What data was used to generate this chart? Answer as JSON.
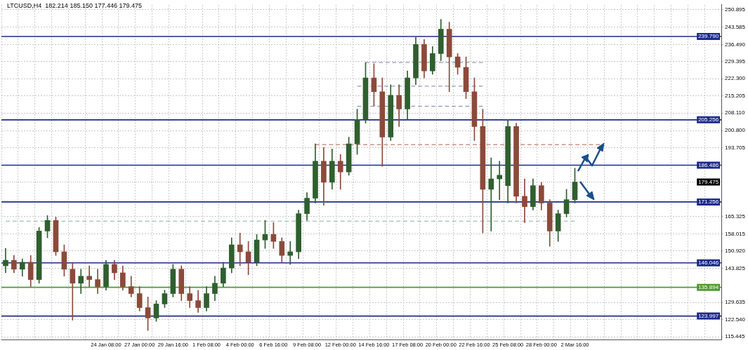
{
  "chart_data": {
    "type": "candlestick",
    "title": "LTCUSD,H4  182.214 185.150 177.446 179.475",
    "categories": [
      null,
      null,
      null,
      null,
      null,
      null,
      null,
      null,
      null,
      null,
      null,
      null,
      "24 Jan 08:00",
      null,
      null,
      null,
      "27 Jan 00:00",
      null,
      null,
      null,
      "29 Jan 16:00",
      null,
      null,
      null,
      "1 Feb 08:00",
      null,
      null,
      null,
      "4 Feb 00:00",
      null,
      null,
      null,
      "6 Feb 16:00",
      null,
      null,
      null,
      "9 Feb 08:00",
      null,
      null,
      null,
      "12 Feb 00:00",
      null,
      null,
      null,
      "14 Feb 16:00",
      null,
      null,
      null,
      "17 Feb 08:00",
      null,
      null,
      null,
      "20 Feb 00:00",
      null,
      null,
      null,
      "22 Feb 16:00",
      null,
      null,
      null,
      "25 Feb 08:00",
      null,
      null,
      null,
      "28 Feb 00:00",
      null,
      null,
      null,
      "2 Mar 16:00",
      null,
      null,
      null,
      null,
      null,
      null,
      null,
      null,
      null,
      null,
      null,
      null,
      null,
      null,
      null,
      null,
      null
    ],
    "ohlc": [
      [
        144.8,
        152.0,
        141.9,
        147.1
      ],
      [
        147.1,
        149.1,
        141.9,
        143.4
      ],
      [
        143.4,
        147.7,
        140.5,
        146.3
      ],
      [
        146.3,
        149.1,
        136.2,
        139.1
      ],
      [
        139.1,
        160.7,
        137.6,
        159.2
      ],
      [
        159.2,
        165.6,
        156.4,
        163.6
      ],
      [
        163.6,
        165.0,
        149.1,
        150.6
      ],
      [
        150.6,
        153.5,
        140.5,
        143.4
      ],
      [
        143.4,
        146.3,
        122.3,
        137.6
      ],
      [
        137.6,
        143.4,
        133.3,
        140.5
      ],
      [
        140.5,
        144.8,
        136.2,
        139.1
      ],
      [
        139.1,
        143.4,
        133.3,
        136.2
      ],
      [
        136.2,
        147.1,
        134.7,
        145.4
      ],
      [
        145.4,
        147.1,
        139.1,
        141.9
      ],
      [
        141.9,
        144.8,
        134.7,
        136.2
      ],
      [
        136.2,
        140.5,
        131.9,
        133.3
      ],
      [
        133.3,
        136.2,
        126.1,
        127.5
      ],
      [
        127.5,
        131.9,
        118.0,
        123.2
      ],
      [
        123.2,
        130.4,
        121.8,
        129.0
      ],
      [
        129.0,
        134.7,
        127.5,
        133.3
      ],
      [
        133.3,
        145.4,
        131.9,
        143.4
      ],
      [
        143.4,
        144.8,
        130.4,
        133.3
      ],
      [
        133.3,
        136.2,
        127.5,
        130.4
      ],
      [
        130.4,
        134.7,
        125.5,
        127.5
      ],
      [
        127.5,
        136.2,
        126.1,
        133.3
      ],
      [
        133.3,
        140.5,
        130.4,
        137.6
      ],
      [
        137.6,
        146.3,
        136.2,
        143.9
      ],
      [
        143.9,
        156.4,
        141.9,
        153.5
      ],
      [
        153.5,
        158.4,
        144.8,
        150.6
      ],
      [
        150.6,
        154.9,
        141.1,
        146.3
      ],
      [
        146.3,
        157.8,
        144.8,
        155.5
      ],
      [
        155.5,
        163.6,
        152.0,
        157.8
      ],
      [
        157.8,
        162.7,
        152.0,
        154.9
      ],
      [
        154.9,
        156.4,
        146.3,
        149.1
      ],
      [
        149.1,
        154.9,
        145.4,
        150.6
      ],
      [
        150.6,
        167.9,
        147.7,
        166.4
      ],
      [
        166.4,
        175.1,
        163.6,
        172.8
      ],
      [
        172.8,
        195.3,
        170.8,
        188.1
      ],
      [
        188.1,
        193.8,
        169.9,
        179.4
      ],
      [
        179.4,
        193.2,
        176.5,
        188.1
      ],
      [
        188.1,
        190.9,
        176.5,
        183.7
      ],
      [
        183.7,
        198.1,
        182.3,
        195.3
      ],
      [
        195.3,
        209.7,
        190.9,
        205.4
      ],
      [
        205.4,
        229.0,
        203.9,
        222.6
      ],
      [
        222.6,
        228.4,
        211.1,
        216.9
      ],
      [
        216.9,
        222.6,
        186.0,
        198.1
      ],
      [
        198.1,
        219.8,
        196.7,
        215.4
      ],
      [
        215.4,
        219.8,
        202.5,
        209.7
      ],
      [
        209.7,
        225.5,
        205.4,
        222.6
      ],
      [
        222.6,
        239.4,
        219.8,
        236.5
      ],
      [
        236.5,
        238.5,
        222.6,
        225.5
      ],
      [
        225.5,
        235.6,
        224.1,
        232.7
      ],
      [
        232.7,
        246.9,
        229.8,
        242.8
      ],
      [
        242.8,
        245.7,
        216.9,
        231.3
      ],
      [
        231.3,
        232.7,
        224.1,
        227.0
      ],
      [
        227.0,
        231.3,
        214.0,
        216.9
      ],
      [
        216.9,
        222.6,
        196.7,
        202.5
      ],
      [
        202.5,
        209.7,
        158.4,
        176.5
      ],
      [
        176.5,
        189.5,
        159.2,
        180.8
      ],
      [
        180.8,
        188.1,
        172.2,
        182.3
      ],
      [
        178.0,
        205.4,
        170.8,
        202.5
      ],
      [
        202.5,
        203.9,
        170.8,
        173.6
      ],
      [
        173.6,
        180.8,
        162.7,
        169.3
      ],
      [
        169.3,
        180.8,
        167.9,
        178.0
      ],
      [
        178.0,
        179.4,
        167.9,
        170.8
      ],
      [
        170.8,
        172.2,
        152.9,
        159.2
      ],
      [
        159.2,
        167.9,
        154.9,
        166.4
      ],
      [
        166.4,
        176.5,
        165.0,
        172.2
      ],
      [
        172.2,
        185.2,
        170.8,
        179.5
      ],
      null,
      null,
      null,
      null,
      null,
      null,
      null,
      null,
      null,
      null,
      null,
      null,
      null,
      null,
      null,
      null,
      null
    ],
    "colors": [
      "#2f5f2f",
      "#8b4a3a",
      "#2f5f2f",
      "#8b4a3a",
      "#2f5f2f",
      "#2f5f2f",
      "#8b4a3a",
      "#8b4a3a",
      "#8b4a3a",
      "#2f5f2f",
      "#8b4a3a",
      "#8b4a3a",
      "#2f5f2f",
      "#8b4a3a",
      "#8b4a3a",
      "#8b4a3a",
      "#8b4a3a",
      "#8b4a3a",
      "#2f5f2f",
      "#2f5f2f",
      "#2f5f2f",
      "#8b4a3a",
      "#8b4a3a",
      "#8b4a3a",
      "#2f5f2f",
      "#2f5f2f",
      "#2f5f2f",
      "#2f5f2f",
      "#8b4a3a",
      "#8b4a3a",
      "#2f5f2f",
      "#2f5f2f",
      "#8b4a3a",
      "#8b4a3a",
      "#2f5f2f",
      "#2f5f2f",
      "#2f5f2f",
      "#2f5f2f",
      "#8b4a3a",
      "#2f5f2f",
      "#8b4a3a",
      "#2f5f2f",
      "#2f5f2f",
      "#2f5f2f",
      "#8b4a3a",
      "#8b4a3a",
      "#2f5f2f",
      "#8b4a3a",
      "#2f5f2f",
      "#2f5f2f",
      "#8b4a3a",
      "#2f5f2f",
      "#2f5f2f",
      "#8b4a3a",
      "#8b4a3a",
      "#8b4a3a",
      "#8b4a3a",
      "#8b4a3a",
      "#2f5f2f",
      "#2f5f2f",
      "#2f5f2f",
      "#8b4a3a",
      "#8b4a3a",
      "#2f5f2f",
      "#8b4a3a",
      "#8b4a3a",
      "#2f5f2f",
      "#2f5f2f",
      "#2f5f2f",
      null,
      null,
      null,
      null,
      null,
      null,
      null,
      null,
      null,
      null,
      null,
      null,
      null,
      null,
      null,
      null,
      null
    ],
    "series": [
      {
        "type": "line",
        "color": "#b05a4a",
        "line_style": "dashed",
        "values": [
          null,
          null,
          null,
          null,
          null,
          null,
          null,
          null,
          null,
          null,
          null,
          null,
          null,
          null,
          null,
          null,
          null,
          null,
          null,
          null,
          null,
          null,
          null,
          null,
          null,
          null,
          null,
          null,
          null,
          null,
          null,
          null,
          null,
          null,
          null,
          null,
          null,
          195.0,
          null,
          null,
          null,
          null,
          null,
          null,
          null,
          null,
          null,
          null,
          null,
          null,
          null,
          null,
          null,
          null,
          null,
          null,
          null,
          null,
          null,
          null,
          null,
          null,
          null,
          null,
          null,
          null,
          null,
          null,
          null,
          null,
          null,
          195.0,
          null,
          null,
          null,
          null,
          null,
          null,
          null,
          null,
          null,
          null,
          null,
          null,
          null,
          null
        ]
      },
      {
        "type": "line",
        "color": "#8fb09a",
        "line_style": "dashed",
        "values": [
          163.3,
          null,
          null,
          null,
          null,
          null,
          null,
          null,
          null,
          null,
          null,
          null,
          null,
          null,
          null,
          null,
          null,
          null,
          null,
          null,
          null,
          null,
          null,
          null,
          null,
          null,
          null,
          null,
          null,
          null,
          null,
          null,
          null,
          null,
          null,
          null,
          null,
          null,
          null,
          null,
          null,
          null,
          null,
          null,
          null,
          null,
          null,
          null,
          null,
          null,
          null,
          null,
          null,
          null,
          null,
          null,
          null,
          null,
          null,
          null,
          null,
          null,
          null,
          null,
          null,
          null,
          null,
          null,
          163.3,
          null,
          null,
          null,
          null,
          null,
          null,
          null,
          null,
          null,
          null,
          null,
          null,
          null,
          null,
          null,
          null,
          null
        ]
      },
      {
        "type": "line",
        "color": "#7a7fb0",
        "line_style": "dashed",
        "values": [
          null,
          null,
          null,
          null,
          null,
          null,
          null,
          null,
          null,
          null,
          null,
          null,
          null,
          null,
          null,
          null,
          null,
          null,
          null,
          null,
          null,
          null,
          null,
          null,
          null,
          null,
          null,
          null,
          null,
          null,
          null,
          null,
          null,
          null,
          null,
          null,
          null,
          null,
          null,
          null,
          null,
          null,
          null,
          229.0,
          null,
          null,
          null,
          null,
          null,
          null,
          null,
          null,
          null,
          null,
          null,
          null,
          null,
          229.0,
          null,
          null,
          null,
          null,
          null,
          null,
          null,
          null,
          null,
          null,
          null,
          null,
          null,
          null,
          null,
          null,
          null,
          null,
          null,
          null,
          null,
          null,
          null,
          null,
          null,
          null,
          null,
          null
        ]
      },
      {
        "type": "line",
        "color": "#7a7fb0",
        "line_style": "dashed",
        "values": [
          null,
          null,
          null,
          null,
          null,
          null,
          null,
          null,
          null,
          null,
          null,
          null,
          null,
          null,
          null,
          null,
          null,
          null,
          null,
          null,
          null,
          null,
          null,
          null,
          null,
          null,
          null,
          null,
          null,
          null,
          null,
          null,
          null,
          null,
          null,
          null,
          null,
          null,
          null,
          null,
          null,
          null,
          219.2,
          null,
          null,
          null,
          null,
          null,
          null,
          null,
          null,
          null,
          null,
          null,
          null,
          null,
          null,
          219.2,
          null,
          null,
          null,
          null,
          null,
          null,
          null,
          null,
          null,
          null,
          null,
          null,
          null,
          null,
          null,
          null,
          null,
          null,
          null,
          null,
          null,
          null,
          null,
          null,
          null,
          null,
          null,
          null
        ]
      },
      {
        "type": "line",
        "color": "#7a7fb0",
        "line_style": "dashed",
        "values": [
          null,
          null,
          null,
          null,
          null,
          null,
          null,
          null,
          null,
          null,
          null,
          null,
          null,
          null,
          null,
          null,
          null,
          null,
          null,
          null,
          null,
          null,
          null,
          null,
          null,
          null,
          null,
          null,
          null,
          null,
          null,
          null,
          null,
          null,
          null,
          null,
          null,
          null,
          null,
          null,
          null,
          null,
          210.9,
          null,
          null,
          null,
          null,
          null,
          null,
          null,
          null,
          null,
          null,
          null,
          null,
          null,
          null,
          210.9,
          null,
          null,
          null,
          null,
          null,
          null,
          null,
          null,
          null,
          null,
          null,
          null,
          null,
          null,
          null,
          null,
          null,
          null,
          null,
          null,
          null,
          null,
          null,
          null,
          null,
          null,
          null,
          null
        ]
      }
    ],
    "ylim": [
      114.3,
      252.9
    ],
    "yticks": [
      {
        "value": 115.445,
        "label": "115.445"
      },
      {
        "value": 122.54,
        "label": "122.540"
      },
      129.635,
      143.825,
      {
        "value": 150.92,
        "label": "150.920"
      },
      158.015,
      165.325,
      193.705,
      {
        "value": 200.8,
        "label": "200.800"
      },
      {
        "value": 208.11,
        "label": "208.110"
      },
      215.205,
      {
        "value": 222.3,
        "label": "222.300"
      },
      229.395,
      {
        "value": 236.49,
        "label": "236.490"
      },
      243.585,
      250.895
    ],
    "ref_lines": [
      {
        "axis": "y",
        "value": 239.79,
        "label": "239.790",
        "color": "#1c2a8c"
      },
      {
        "axis": "y",
        "value": 205.256,
        "label": "205.256",
        "color": "#1c2a8c"
      },
      {
        "axis": "y",
        "value": 186.486,
        "label": "186.486",
        "color": "#1c2a8c"
      },
      {
        "axis": "y",
        "value": 179.475,
        "label": "179.475",
        "color": "#000000",
        "line_style": "dotted"
      },
      {
        "axis": "y",
        "value": 171.256,
        "label": "171.256",
        "color": "#1c2a8c"
      },
      {
        "axis": "y",
        "value": 146.046,
        "label": "146.046",
        "color": "#1c2a8c"
      },
      {
        "axis": "y",
        "value": 135.894,
        "label": "135.894",
        "color": "#4f9a2f"
      },
      {
        "axis": "y",
        "value": 123.997,
        "label": "123.997",
        "color": "#1c2a8c"
      }
    ],
    "grid": true,
    "marker": "none"
  }
}
